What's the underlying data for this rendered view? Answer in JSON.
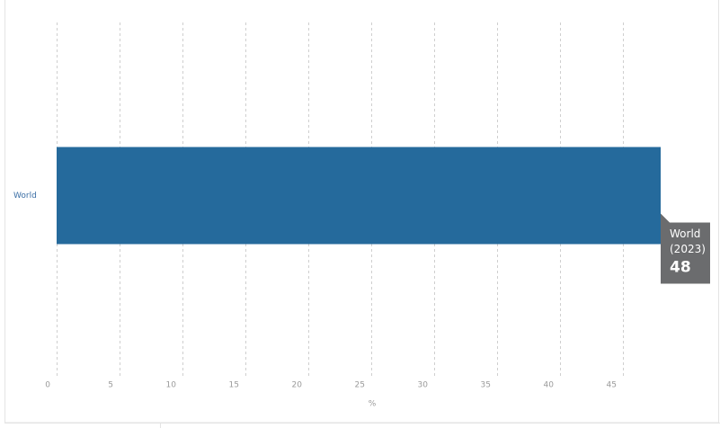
{
  "chart_data": {
    "type": "bar",
    "orientation": "horizontal",
    "categories": [
      "World"
    ],
    "values": [
      48
    ],
    "color": "#256a9c",
    "x_label": "%",
    "xlim": [
      0,
      50
    ],
    "xticks": [
      0,
      5,
      10,
      15,
      20,
      25,
      30,
      35,
      40,
      45
    ],
    "grid": true,
    "tooltip": {
      "period": "(2023)"
    }
  }
}
